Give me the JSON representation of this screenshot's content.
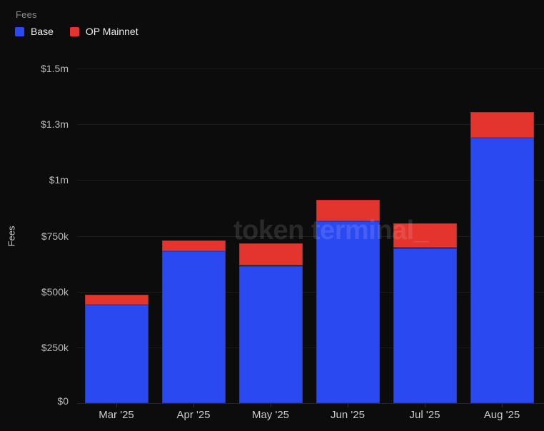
{
  "header": {
    "title": "Fees"
  },
  "legend": [
    {
      "label": "Base",
      "color": "#2b49f0"
    },
    {
      "label": "OP Mainnet",
      "color": "#e3342e"
    }
  ],
  "watermark": "token terminal_",
  "chart_data": {
    "type": "bar",
    "stacked": true,
    "title": "Fees",
    "xlabel": "",
    "ylabel": "Fees",
    "categories": [
      "Mar '25",
      "Apr '25",
      "May '25",
      "Jun '25",
      "Jul '25",
      "Aug '25"
    ],
    "series": [
      {
        "name": "Base",
        "color": "#2b49f0",
        "values": [
          440000,
          680000,
          615000,
          815000,
          695000,
          1190000
        ]
      },
      {
        "name": "OP Mainnet",
        "color": "#e3342e",
        "values": [
          45000,
          48000,
          100000,
          95000,
          110000,
          115000
        ]
      }
    ],
    "ylim": [
      0,
      1500000
    ],
    "yticks": [
      {
        "value": 0,
        "label": "$0"
      },
      {
        "value": 250000,
        "label": "$250k"
      },
      {
        "value": 500000,
        "label": "$500k"
      },
      {
        "value": 750000,
        "label": "$750k"
      },
      {
        "value": 1000000,
        "label": "$1m"
      },
      {
        "value": 1250000,
        "label": "$1.3m"
      },
      {
        "value": 1500000,
        "label": "$1.5m"
      }
    ],
    "grid": true,
    "legend_position": "top-left"
  }
}
